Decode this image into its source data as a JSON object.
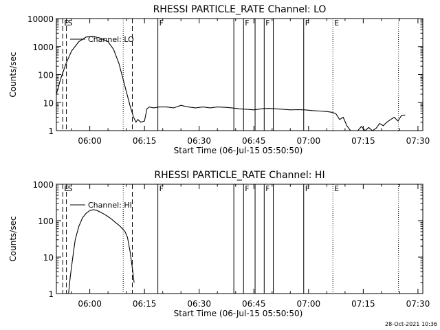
{
  "footer_timestamp": "28-Oct-2021 10:36",
  "chart_data": [
    {
      "type": "line",
      "title": "RHESSI PARTICLE_RATE Channel: LO",
      "xlabel": "Start Time (06-Jul-15 05:50:50)",
      "ylabel": "Counts/sec",
      "y_scale": "log",
      "ylim": [
        1,
        10000
      ],
      "xlim": [
        "05:50:50",
        "07:31:20"
      ],
      "x_ticks": [
        "06:00",
        "06:15",
        "06:30",
        "06:45",
        "07:00",
        "07:15",
        "07:30"
      ],
      "y_ticks": [
        "1",
        "10",
        "100",
        "1000",
        "10000"
      ],
      "legend": "Channel: LO",
      "legend_position": "top-left",
      "markers": [
        {
          "time": "05:52:35",
          "style": "dashed",
          "label": "E"
        },
        {
          "time": "05:53:35",
          "style": "dashed",
          "label": "S"
        },
        {
          "time": "06:09:10",
          "style": "dotted",
          "label": ""
        },
        {
          "time": "06:11:40",
          "style": "dashed",
          "label": ""
        },
        {
          "time": "06:18:40",
          "style": "solid",
          "label": "F"
        },
        {
          "time": "06:39:30",
          "style": "solid",
          "label": ""
        },
        {
          "time": "06:42:10",
          "style": "solid",
          "label": "F"
        },
        {
          "time": "06:45:20",
          "style": "solid",
          "label": ""
        },
        {
          "time": "06:47:50",
          "style": "solid",
          "label": "F"
        },
        {
          "time": "06:50:20",
          "style": "solid",
          "label": ""
        },
        {
          "time": "06:58:40",
          "style": "solid",
          "label": "F"
        },
        {
          "time": "07:06:40",
          "style": "dotted",
          "label": "E"
        },
        {
          "time": "07:24:40",
          "style": "dotted",
          "label": ""
        }
      ],
      "series": [
        {
          "name": "Channel: LO",
          "x": [
            "05:50:50",
            "05:52:00",
            "05:53:30",
            "05:55:00",
            "05:57:00",
            "05:59:00",
            "06:01:00",
            "06:03:00",
            "06:05:00",
            "06:06:30",
            "06:08:00",
            "06:09:00",
            "06:10:00",
            "06:11:00",
            "06:12:00",
            "06:12:40",
            "06:13:10",
            "06:14:00",
            "06:15:00",
            "06:15:40",
            "06:16:20",
            "06:17:30",
            "06:19:00",
            "06:21:00",
            "06:23:00",
            "06:25:00",
            "06:27:00",
            "06:29:00",
            "06:31:00",
            "06:33:00",
            "06:35:00",
            "06:37:00",
            "06:39:00",
            "06:41:00",
            "06:43:00",
            "06:45:00",
            "06:47:00",
            "06:49:00",
            "06:51:00",
            "06:53:00",
            "06:55:00",
            "06:57:00",
            "06:59:00",
            "07:01:00",
            "07:03:00",
            "07:05:00",
            "07:06:30",
            "07:07:30",
            "07:08:30",
            "07:09:30",
            "07:10:30",
            "07:11:30",
            "07:12:30",
            "07:13:30",
            "07:14:30",
            "07:15:30",
            "07:16:30",
            "07:17:30",
            "07:18:30",
            "07:19:30",
            "07:20:30",
            "07:21:30",
            "07:22:30",
            "07:23:30",
            "07:24:30",
            "07:25:30",
            "07:26:30"
          ],
          "values": [
            20,
            70,
            250,
            700,
            1500,
            2200,
            2300,
            2000,
            1500,
            800,
            250,
            80,
            25,
            8,
            3,
            2,
            2.5,
            2,
            2.2,
            6,
            7,
            6.5,
            7,
            7,
            6.5,
            8,
            7,
            6.5,
            7,
            6.5,
            7,
            6.8,
            6.5,
            6,
            5.8,
            5.5,
            6,
            6.2,
            6,
            5.8,
            5.5,
            5.6,
            5.5,
            5.2,
            5,
            4.8,
            4.5,
            4,
            2.5,
            3,
            1.5,
            1,
            1,
            1,
            1.4,
            1,
            1.3,
            1,
            1.2,
            1.8,
            1.5,
            2,
            2.5,
            3,
            2.2,
            3.5,
            3.6
          ]
        }
      ]
    },
    {
      "type": "line",
      "title": "RHESSI PARTICLE_RATE Channel: HI",
      "xlabel": "Start Time (06-Jul-15 05:50:50)",
      "ylabel": "Counts/sec",
      "y_scale": "log",
      "ylim": [
        1,
        1000
      ],
      "xlim": [
        "05:50:50",
        "07:31:20"
      ],
      "x_ticks": [
        "06:00",
        "06:15",
        "06:30",
        "06:45",
        "07:00",
        "07:15",
        "07:30"
      ],
      "y_ticks": [
        "1",
        "10",
        "100",
        "1000"
      ],
      "legend": "Channel: HI",
      "legend_position": "top-left",
      "markers": [
        {
          "time": "05:52:35",
          "style": "dashed",
          "label": "E"
        },
        {
          "time": "05:53:35",
          "style": "dashed",
          "label": "S"
        },
        {
          "time": "06:09:10",
          "style": "dotted",
          "label": ""
        },
        {
          "time": "06:11:40",
          "style": "dashed",
          "label": ""
        },
        {
          "time": "06:18:40",
          "style": "solid",
          "label": "F"
        },
        {
          "time": "06:39:30",
          "style": "solid",
          "label": ""
        },
        {
          "time": "06:42:10",
          "style": "solid",
          "label": "F"
        },
        {
          "time": "06:45:20",
          "style": "solid",
          "label": ""
        },
        {
          "time": "06:47:50",
          "style": "solid",
          "label": "F"
        },
        {
          "time": "06:50:20",
          "style": "solid",
          "label": ""
        },
        {
          "time": "06:58:40",
          "style": "solid",
          "label": "F"
        },
        {
          "time": "07:06:40",
          "style": "dotted",
          "label": "E"
        },
        {
          "time": "07:24:40",
          "style": "dotted",
          "label": ""
        }
      ],
      "series": [
        {
          "name": "Channel: HI",
          "x": [
            "05:54:10",
            "05:54:40",
            "05:55:20",
            "05:56:00",
            "05:57:00",
            "05:58:00",
            "05:59:00",
            "06:00:00",
            "06:01:00",
            "06:02:00",
            "06:03:00",
            "06:04:00",
            "06:05:00",
            "06:06:00",
            "06:07:00",
            "06:08:00",
            "06:09:00",
            "06:09:40",
            "06:10:20",
            "06:11:00",
            "06:11:40",
            "06:12:10"
          ],
          "values": [
            1,
            3,
            10,
            30,
            70,
            120,
            160,
            190,
            200,
            190,
            170,
            150,
            130,
            110,
            90,
            75,
            60,
            50,
            35,
            15,
            5,
            2
          ]
        }
      ]
    }
  ]
}
